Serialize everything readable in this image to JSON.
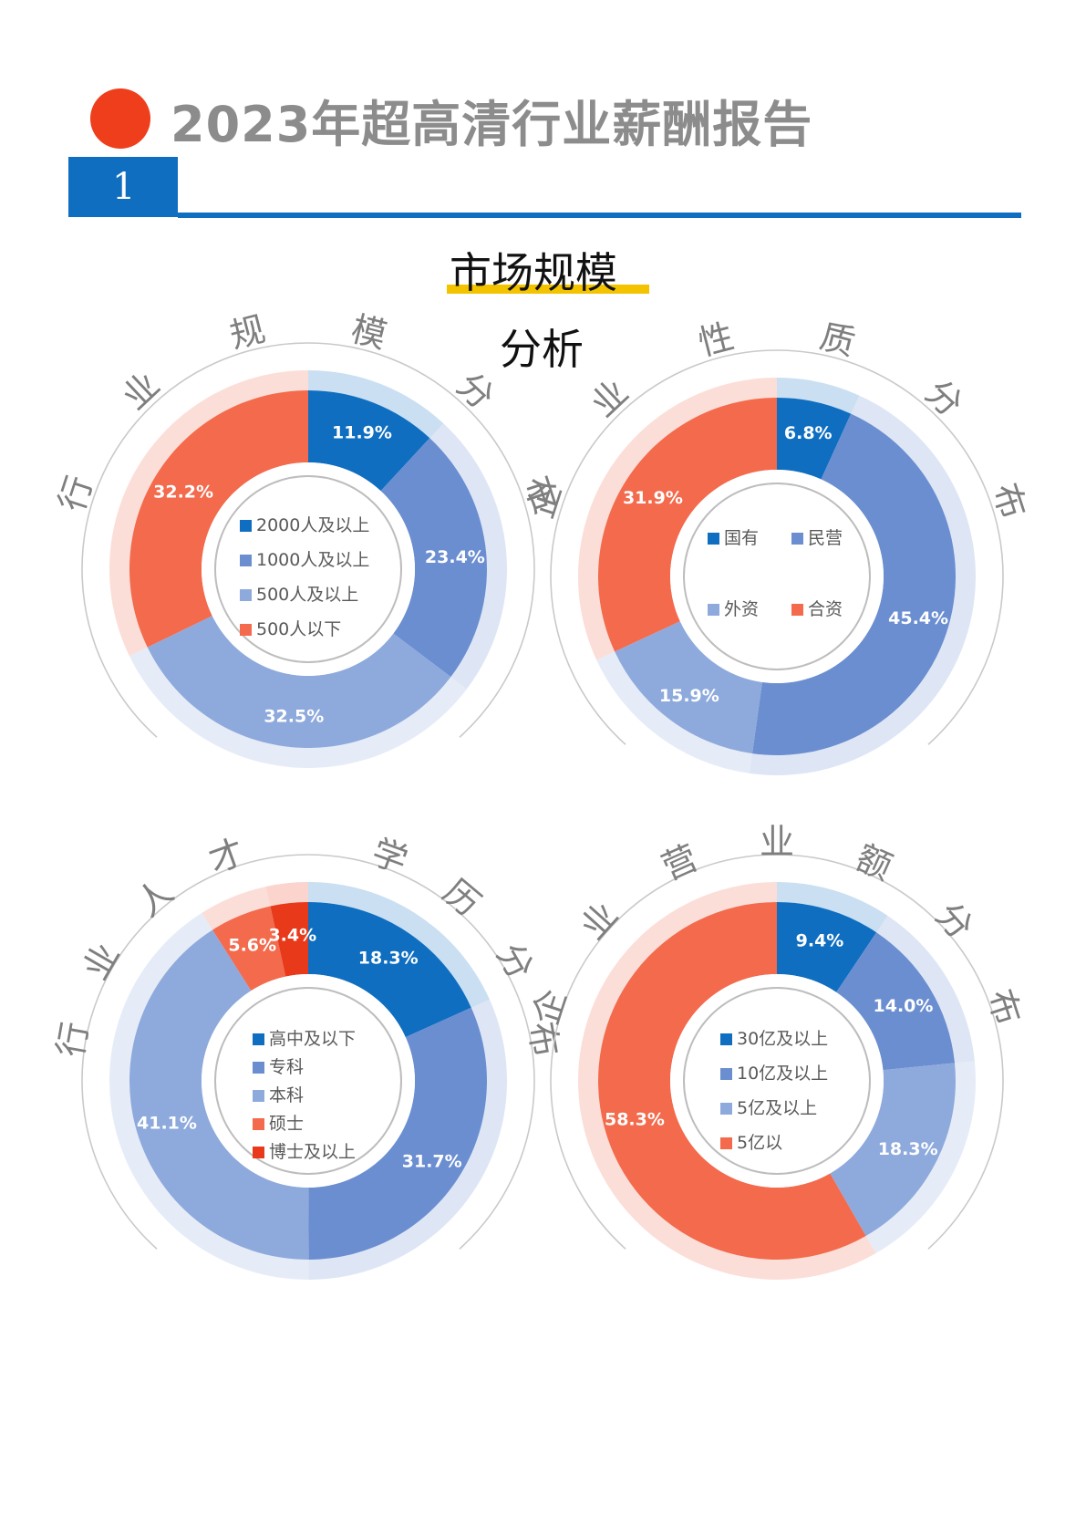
{
  "header": {
    "title": "2023年超高清行业薪酬报告",
    "section_number": "1"
  },
  "subtitle": {
    "line1": "市场规模",
    "line2": "分析"
  },
  "colors": {
    "blue_dark": "#0f6ec0",
    "blue_mid": "#6b8ed1",
    "blue_light": "#8eaadc",
    "orange": "#f36a4c",
    "red": "#e8391b",
    "accent_red": "#ef3e1c",
    "yellow": "#f3c300"
  },
  "chart_data": [
    {
      "type": "pie",
      "title": "行业规模分布",
      "categories": [
        "2000人及以上",
        "1000人及以上",
        "500人及以上",
        "500人以下"
      ],
      "values": [
        11.9,
        23.4,
        32.5,
        32.2
      ],
      "labels": [
        "11.9%",
        "23.4%",
        "32.5%",
        "32.2%"
      ],
      "colors": [
        "#0f6ec0",
        "#6b8ed1",
        "#8eaadc",
        "#f36a4c"
      ],
      "legend": "center"
    },
    {
      "type": "pie",
      "title": "企业性质分布",
      "categories": [
        "国有",
        "民营",
        "外资",
        "合资"
      ],
      "values": [
        6.8,
        45.4,
        15.9,
        31.9
      ],
      "labels": [
        "6.8%",
        "45.4%",
        "15.9%",
        "31.9%"
      ],
      "colors": [
        "#0f6ec0",
        "#6b8ed1",
        "#8eaadc",
        "#f36a4c"
      ],
      "legend": "center"
    },
    {
      "type": "pie",
      "title": "行业人才 学历分布",
      "categories": [
        "高中及以下",
        "专科",
        "本科",
        "硕士",
        "博士及以上"
      ],
      "values": [
        18.3,
        31.7,
        41.1,
        5.6,
        3.4
      ],
      "labels": [
        "18.3%",
        "31.7%",
        "41.1%",
        "5.6%",
        "3.4%"
      ],
      "colors": [
        "#0f6ec0",
        "#6b8ed1",
        "#8eaadc",
        "#f36a4c",
        "#e8391b"
      ],
      "legend": "center"
    },
    {
      "type": "pie",
      "title": "企业营业额分布",
      "categories": [
        "30亿及以上",
        "10亿及以上",
        "5亿及以上",
        "5亿以"
      ],
      "values": [
        9.4,
        14.0,
        18.3,
        58.3
      ],
      "labels": [
        "9.4%",
        "14.0%",
        "18.3%",
        "58.3%"
      ],
      "colors": [
        "#0f6ec0",
        "#6b8ed1",
        "#8eaadc",
        "#f36a4c"
      ],
      "legend": "center"
    }
  ]
}
